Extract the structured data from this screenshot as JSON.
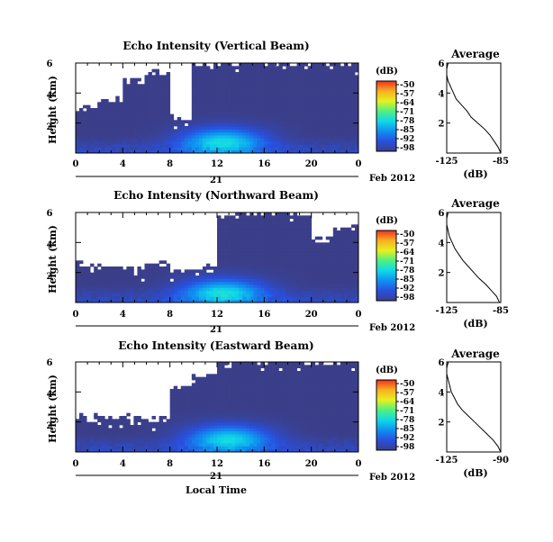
{
  "figure": {
    "x_label": "Local Time",
    "month_label": "Feb 2012",
    "day_label": "21"
  },
  "colorbar": {
    "unit_label": "(dB)",
    "ticks": [
      "-50",
      "-57",
      "-64",
      "-71",
      "-78",
      "-85",
      "-92",
      "-98"
    ],
    "stops": [
      "#f03020",
      "#f7b020",
      "#e8f020",
      "#50f080",
      "#10d8e8",
      "#1090f0",
      "#2850e0",
      "#3b3f8a"
    ]
  },
  "chart_data": [
    {
      "type": "heatmap",
      "title": "Echo Intensity (Vertical Beam)",
      "ylabel": "Height (km)",
      "xlabel": "",
      "xlim": [
        0,
        24
      ],
      "ylim": [
        0,
        6
      ],
      "x_ticks": [
        "0",
        "4",
        "8",
        "12",
        "16",
        "20",
        "0"
      ],
      "y_ticks": [
        "2",
        "4",
        "6"
      ],
      "clim": [
        -98,
        -50
      ],
      "missing_above_km": [
        3.0,
        3.6,
        4.8,
        5.4,
        2.4,
        6,
        6,
        6,
        6,
        6,
        6,
        6
      ],
      "peak": {
        "time_h": 12.5,
        "height_km": 0.8,
        "value_db": -78
      },
      "avg_title": "Average",
      "avg_xlabel": "(dB)",
      "avg_xticks": [
        "-125",
        "-85"
      ],
      "avg_yticks": [
        "2",
        "4",
        "6"
      ],
      "avg_profile_db": [
        -85,
        -87,
        -90,
        -93,
        -97,
        -102,
        -107,
        -110,
        -114,
        -118,
        -120,
        -122,
        -124,
        -125,
        -125,
        -124
      ]
    },
    {
      "type": "heatmap",
      "title": "Echo Intensity (Northward Beam)",
      "ylabel": "Height (km)",
      "xlabel": "",
      "xlim": [
        0,
        24
      ],
      "ylim": [
        0,
        6
      ],
      "x_ticks": [
        "0",
        "4",
        "8",
        "12",
        "16",
        "20",
        "0"
      ],
      "y_ticks": [
        "2",
        "4",
        "6"
      ],
      "clim": [
        -98,
        -50
      ],
      "missing_above_km": [
        2.5,
        2.4,
        2.2,
        2.6,
        2.1,
        2.3,
        5.8,
        6,
        6,
        6,
        4.2,
        5.0
      ],
      "peak": {
        "time_h": 12.5,
        "height_km": 0.7,
        "value_db": -78
      },
      "avg_title": "Average",
      "avg_xlabel": "(dB)",
      "avg_xticks": [
        "-125",
        "-85"
      ],
      "avg_yticks": [
        "2",
        "4",
        "6"
      ],
      "avg_profile_db": [
        -86,
        -88,
        -92,
        -96,
        -101,
        -105,
        -109,
        -113,
        -116,
        -119,
        -121,
        -123,
        -124,
        -125,
        -125,
        -124
      ]
    },
    {
      "type": "heatmap",
      "title": "Echo Intensity (Eastward Beam)",
      "ylabel": "Height (km)",
      "xlabel": "Local Time",
      "xlim": [
        0,
        24
      ],
      "ylim": [
        0,
        6
      ],
      "x_ticks": [
        "0",
        "4",
        "8",
        "12",
        "16",
        "20",
        "0"
      ],
      "y_ticks": [
        "2",
        "4",
        "6"
      ],
      "clim": [
        -98,
        -50
      ],
      "missing_above_km": [
        2.4,
        2.4,
        2.3,
        2.2,
        4.3,
        5.2,
        5.8,
        5.9,
        6,
        6,
        6,
        6
      ],
      "peak": {
        "time_h": 13,
        "height_km": 0.9,
        "value_db": -78
      },
      "avg_title": "Average",
      "avg_xlabel": "(dB)",
      "avg_xticks": [
        "-125",
        "-90"
      ],
      "avg_yticks": [
        "2",
        "4",
        "6"
      ],
      "avg_profile_db": [
        -90,
        -92,
        -95,
        -99,
        -103,
        -107,
        -111,
        -115,
        -118,
        -120,
        -122,
        -123,
        -124,
        -125,
        -125,
        -124
      ]
    }
  ]
}
